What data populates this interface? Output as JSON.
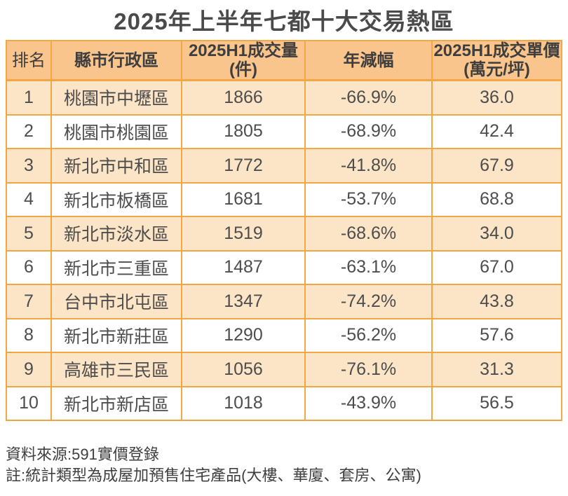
{
  "title": "2025年上半年七都十大交易熱區",
  "colors": {
    "header_bg": "#fac58c",
    "row_alt_bg": "#fce4c6",
    "border_color": "#f2a644",
    "title_color": "#4a4a4a",
    "header_text": "#3e3e3e",
    "cell_text": "#4d4d4d",
    "footer_text": "#3f3f3f"
  },
  "table": {
    "columns": [
      {
        "line1": "排名",
        "line2": ""
      },
      {
        "line1": "縣市行政區",
        "line2": ""
      },
      {
        "line1": "2025H1成交量",
        "line2": "(件)"
      },
      {
        "line1": "年減幅",
        "line2": ""
      },
      {
        "line1": "2025H1成交單價",
        "line2": "(萬元/坪)"
      }
    ],
    "rows": [
      [
        "1",
        "桃園市中壢區",
        "1866",
        "-66.9%",
        "36.0"
      ],
      [
        "2",
        "桃園市桃園區",
        "1805",
        "-68.9%",
        "42.4"
      ],
      [
        "3",
        "新北市中和區",
        "1772",
        "-41.8%",
        "67.9"
      ],
      [
        "4",
        "新北市板橋區",
        "1681",
        "-53.7%",
        "68.8"
      ],
      [
        "5",
        "新北市淡水區",
        "1519",
        "-68.6%",
        "34.0"
      ],
      [
        "6",
        "新北市三重區",
        "1487",
        "-63.1%",
        "67.0"
      ],
      [
        "7",
        "台中市北屯區",
        "1347",
        "-74.2%",
        "43.8"
      ],
      [
        "8",
        "新北市新莊區",
        "1290",
        "-56.2%",
        "57.6"
      ],
      [
        "9",
        "高雄市三民區",
        "1056",
        "-76.1%",
        "31.3"
      ],
      [
        "10",
        "新北市新店區",
        "1018",
        "-43.9%",
        "56.5"
      ]
    ]
  },
  "footer": {
    "source": "資料來源:591實價登錄",
    "note": "註:統計類型為成屋加預售住宅產品(大樓、華廈、套房、公寓)"
  },
  "chart_data": {
    "type": "table",
    "title": "2025年上半年七都十大交易熱區",
    "columns": [
      "排名",
      "縣市行政區",
      "2025H1成交量(件)",
      "年減幅",
      "2025H1成交單價(萬元/坪)"
    ],
    "rows": [
      [
        1,
        "桃園市中壢區",
        1866,
        -66.9,
        36.0
      ],
      [
        2,
        "桃園市桃園區",
        1805,
        -68.9,
        42.4
      ],
      [
        3,
        "新北市中和區",
        1772,
        -41.8,
        67.9
      ],
      [
        4,
        "新北市板橋區",
        1681,
        -53.7,
        68.8
      ],
      [
        5,
        "新北市淡水區",
        1519,
        -68.6,
        34.0
      ],
      [
        6,
        "新北市三重區",
        1487,
        -63.1,
        67.0
      ],
      [
        7,
        "台中市北屯區",
        1347,
        -74.2,
        43.8
      ],
      [
        8,
        "新北市新莊區",
        1290,
        -56.2,
        57.6
      ],
      [
        9,
        "高雄市三民區",
        1056,
        -76.1,
        31.3
      ],
      [
        10,
        "新北市新店區",
        1018,
        -43.9,
        56.5
      ]
    ],
    "units": {
      "volume": "件",
      "yoy_change": "%",
      "unit_price": "萬元/坪"
    },
    "source": "591實價登錄"
  }
}
